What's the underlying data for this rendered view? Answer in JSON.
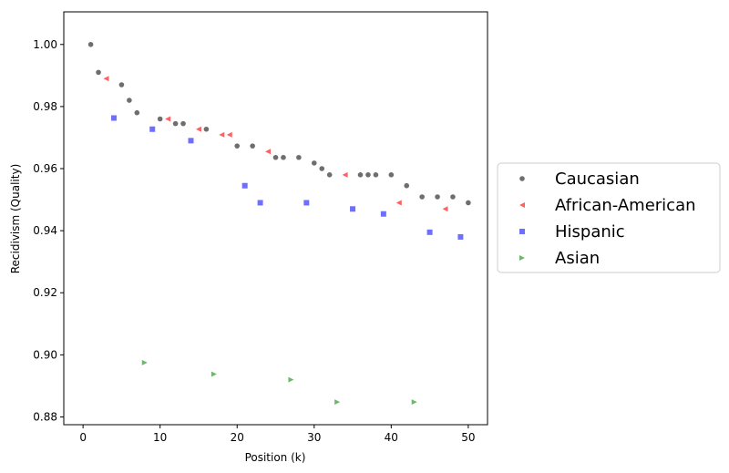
{
  "chart_data": {
    "type": "scatter",
    "xlabel": "Position (k)",
    "ylabel": "Recidivism (Quality)",
    "xlim": [
      -2.5,
      52.5
    ],
    "ylim": [
      0.8775,
      1.0105
    ],
    "xticks": [
      "0",
      "10",
      "20",
      "30",
      "40",
      "50"
    ],
    "yticks": [
      "0.88",
      "0.90",
      "0.92",
      "0.94",
      "0.96",
      "0.98",
      "1.00"
    ],
    "xtick_values": [
      0,
      10,
      20,
      30,
      40,
      50
    ],
    "ytick_values": [
      0.88,
      0.9,
      0.92,
      0.94,
      0.96,
      0.98,
      1.0
    ],
    "grid": false,
    "legend_placement": "outside-right",
    "series": [
      {
        "name": "Caucasian",
        "color": "#555555",
        "marker": "circle",
        "points": [
          [
            1,
            1.0
          ],
          [
            2,
            0.991
          ],
          [
            5,
            0.987
          ],
          [
            6,
            0.982
          ],
          [
            7,
            0.978
          ],
          [
            10,
            0.976
          ],
          [
            12,
            0.9745
          ],
          [
            13,
            0.9745
          ],
          [
            16,
            0.9727
          ],
          [
            20,
            0.9673
          ],
          [
            22,
            0.9673
          ],
          [
            25,
            0.9636
          ],
          [
            26,
            0.9636
          ],
          [
            28,
            0.9636
          ],
          [
            30,
            0.9618
          ],
          [
            31,
            0.96
          ],
          [
            32,
            0.958
          ],
          [
            36,
            0.958
          ],
          [
            37,
            0.958
          ],
          [
            38,
            0.958
          ],
          [
            40,
            0.958
          ],
          [
            42,
            0.9545
          ],
          [
            44,
            0.9509
          ],
          [
            46,
            0.9509
          ],
          [
            48,
            0.9509
          ],
          [
            50,
            0.949
          ]
        ]
      },
      {
        "name": "African-American",
        "color": "#ff4444",
        "marker": "triangle-left",
        "points": [
          [
            3,
            0.989
          ],
          [
            11,
            0.976
          ],
          [
            15,
            0.9727
          ],
          [
            18,
            0.9709
          ],
          [
            19,
            0.9709
          ],
          [
            24,
            0.9655
          ],
          [
            34,
            0.958
          ],
          [
            41,
            0.949
          ],
          [
            47,
            0.947
          ]
        ]
      },
      {
        "name": "Hispanic",
        "color": "#5555ff",
        "marker": "square",
        "points": [
          [
            4,
            0.9763
          ],
          [
            9,
            0.9727
          ],
          [
            14,
            0.969
          ],
          [
            21,
            0.9545
          ],
          [
            23,
            0.949
          ],
          [
            29,
            0.949
          ],
          [
            35,
            0.947
          ],
          [
            39,
            0.9454
          ],
          [
            45,
            0.9395
          ],
          [
            49,
            0.938
          ]
        ]
      },
      {
        "name": "Asian",
        "color": "#55aa55",
        "marker": "triangle-right",
        "points": [
          [
            8,
            0.8975
          ],
          [
            17,
            0.8938
          ],
          [
            27,
            0.892
          ],
          [
            33,
            0.8848
          ],
          [
            43,
            0.8848
          ]
        ]
      }
    ]
  }
}
